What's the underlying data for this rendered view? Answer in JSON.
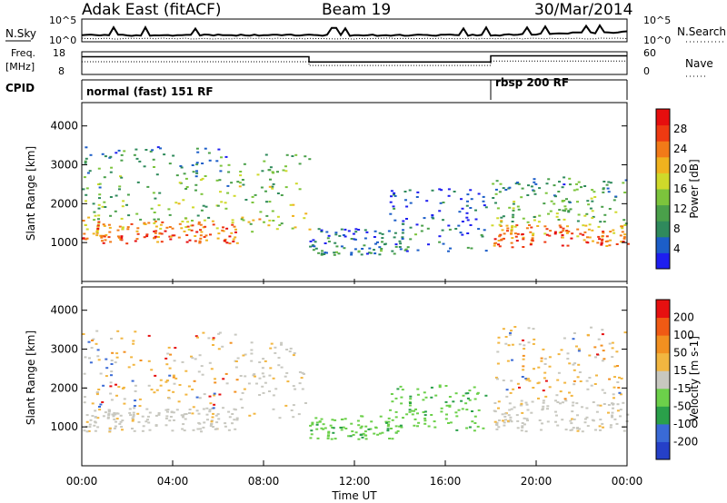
{
  "header": {
    "radar": "Adak East (fitACF)",
    "beam": "Beam 19",
    "date": "30/Mar/2014"
  },
  "nsky_panel": {
    "left_label": "N.Sky",
    "right_label": "N.Search",
    "y_ticks_left": [
      "10^5",
      "10^0"
    ],
    "y_ticks_right": [
      "10^5",
      "10^0"
    ]
  },
  "freq_panel": {
    "left_label_line1": "Freq.",
    "left_label_line2": "[MHz]",
    "right_label": "Nave",
    "y_ticks_left": [
      "18",
      "8"
    ],
    "y_ticks_right": [
      "60",
      "0"
    ],
    "freq_segments": [
      {
        "start_h": 0,
        "end_h": 10.0,
        "level": 0.78
      },
      {
        "start_h": 10.0,
        "end_h": 18.0,
        "level": 0.55
      },
      {
        "start_h": 18.0,
        "end_h": 24.0,
        "level": 0.82
      }
    ]
  },
  "cpid": {
    "label": "CPID",
    "modes": [
      {
        "start_h": 0,
        "text": "normal (fast) 151 RF"
      },
      {
        "start_h": 18.0,
        "text": "rbsp 200 RF"
      }
    ]
  },
  "chart_data": [
    {
      "type": "heatmap",
      "name": "power",
      "ylabel": "Slant Range [km]",
      "ylim": [
        0,
        4600
      ],
      "y_ticks": [
        1000,
        2000,
        3000,
        4000
      ],
      "colorbar": {
        "label": "Power [dB]",
        "ticks": [
          "4",
          "8",
          "12",
          "16",
          "20",
          "24",
          "28"
        ],
        "colors": [
          "#1e1ef0",
          "#1c5ec8",
          "#2f8a5c",
          "#4aa04a",
          "#7cc43c",
          "#cfd92a",
          "#f0b21e",
          "#f27a18",
          "#ee3a12",
          "#e60e0e"
        ]
      },
      "bands": [
        {
          "t0": 0.0,
          "t1": 6.8,
          "r0": 1000,
          "r1": 1600,
          "strength": 0.9
        },
        {
          "t0": 0.0,
          "t1": 6.5,
          "r0": 1600,
          "r1": 3500,
          "strength": 0.45
        },
        {
          "t0": 6.5,
          "t1": 10.0,
          "r0": 1300,
          "r1": 3300,
          "strength": 0.55
        },
        {
          "t0": 10.0,
          "t1": 14.0,
          "r0": 700,
          "r1": 1400,
          "strength": 0.25
        },
        {
          "t0": 13.5,
          "t1": 17.8,
          "r0": 800,
          "r1": 2400,
          "strength": 0.25
        },
        {
          "t0": 18.0,
          "t1": 24.0,
          "r0": 900,
          "r1": 1500,
          "strength": 0.9
        },
        {
          "t0": 18.0,
          "t1": 24.0,
          "r0": 1500,
          "r1": 2700,
          "strength": 0.45
        }
      ]
    },
    {
      "type": "heatmap",
      "name": "velocity",
      "ylabel": "Slant Range [km]",
      "ylim": [
        0,
        4600
      ],
      "y_ticks": [
        1000,
        2000,
        3000,
        4000
      ],
      "colorbar": {
        "label": "Velocity [m s-1]",
        "ticks": [
          "200",
          "100",
          "50",
          "15",
          "-15",
          "-50",
          "-100",
          "-200"
        ],
        "colors": [
          "#2540c8",
          "#3a6ad6",
          "#2aa04a",
          "#6cd04a",
          "#c8c8c0",
          "#f2b640",
          "#f29020",
          "#f05a14",
          "#e61010"
        ]
      },
      "bands": [
        {
          "t0": 0.0,
          "t1": 6.8,
          "r0": 900,
          "r1": 1500,
          "kind": "ground"
        },
        {
          "t0": 0.0,
          "t1": 6.8,
          "r0": 1500,
          "r1": 3500,
          "kind": "mixed"
        },
        {
          "t0": 6.8,
          "t1": 10.0,
          "r0": 1200,
          "r1": 3200,
          "kind": "ground"
        },
        {
          "t0": 10.0,
          "t1": 14.0,
          "r0": 700,
          "r1": 1300,
          "kind": "green"
        },
        {
          "t0": 13.5,
          "t1": 17.8,
          "r0": 900,
          "r1": 2100,
          "kind": "green"
        },
        {
          "t0": 18.0,
          "t1": 24.0,
          "r0": 900,
          "r1": 1700,
          "kind": "ground"
        },
        {
          "t0": 18.0,
          "t1": 24.0,
          "r0": 1700,
          "r1": 3600,
          "kind": "mixed"
        }
      ]
    }
  ],
  "x_axis": {
    "label": "Time UT",
    "ticks": [
      "00:00",
      "04:00",
      "08:00",
      "12:00",
      "16:00",
      "20:00",
      "00:00"
    ]
  }
}
